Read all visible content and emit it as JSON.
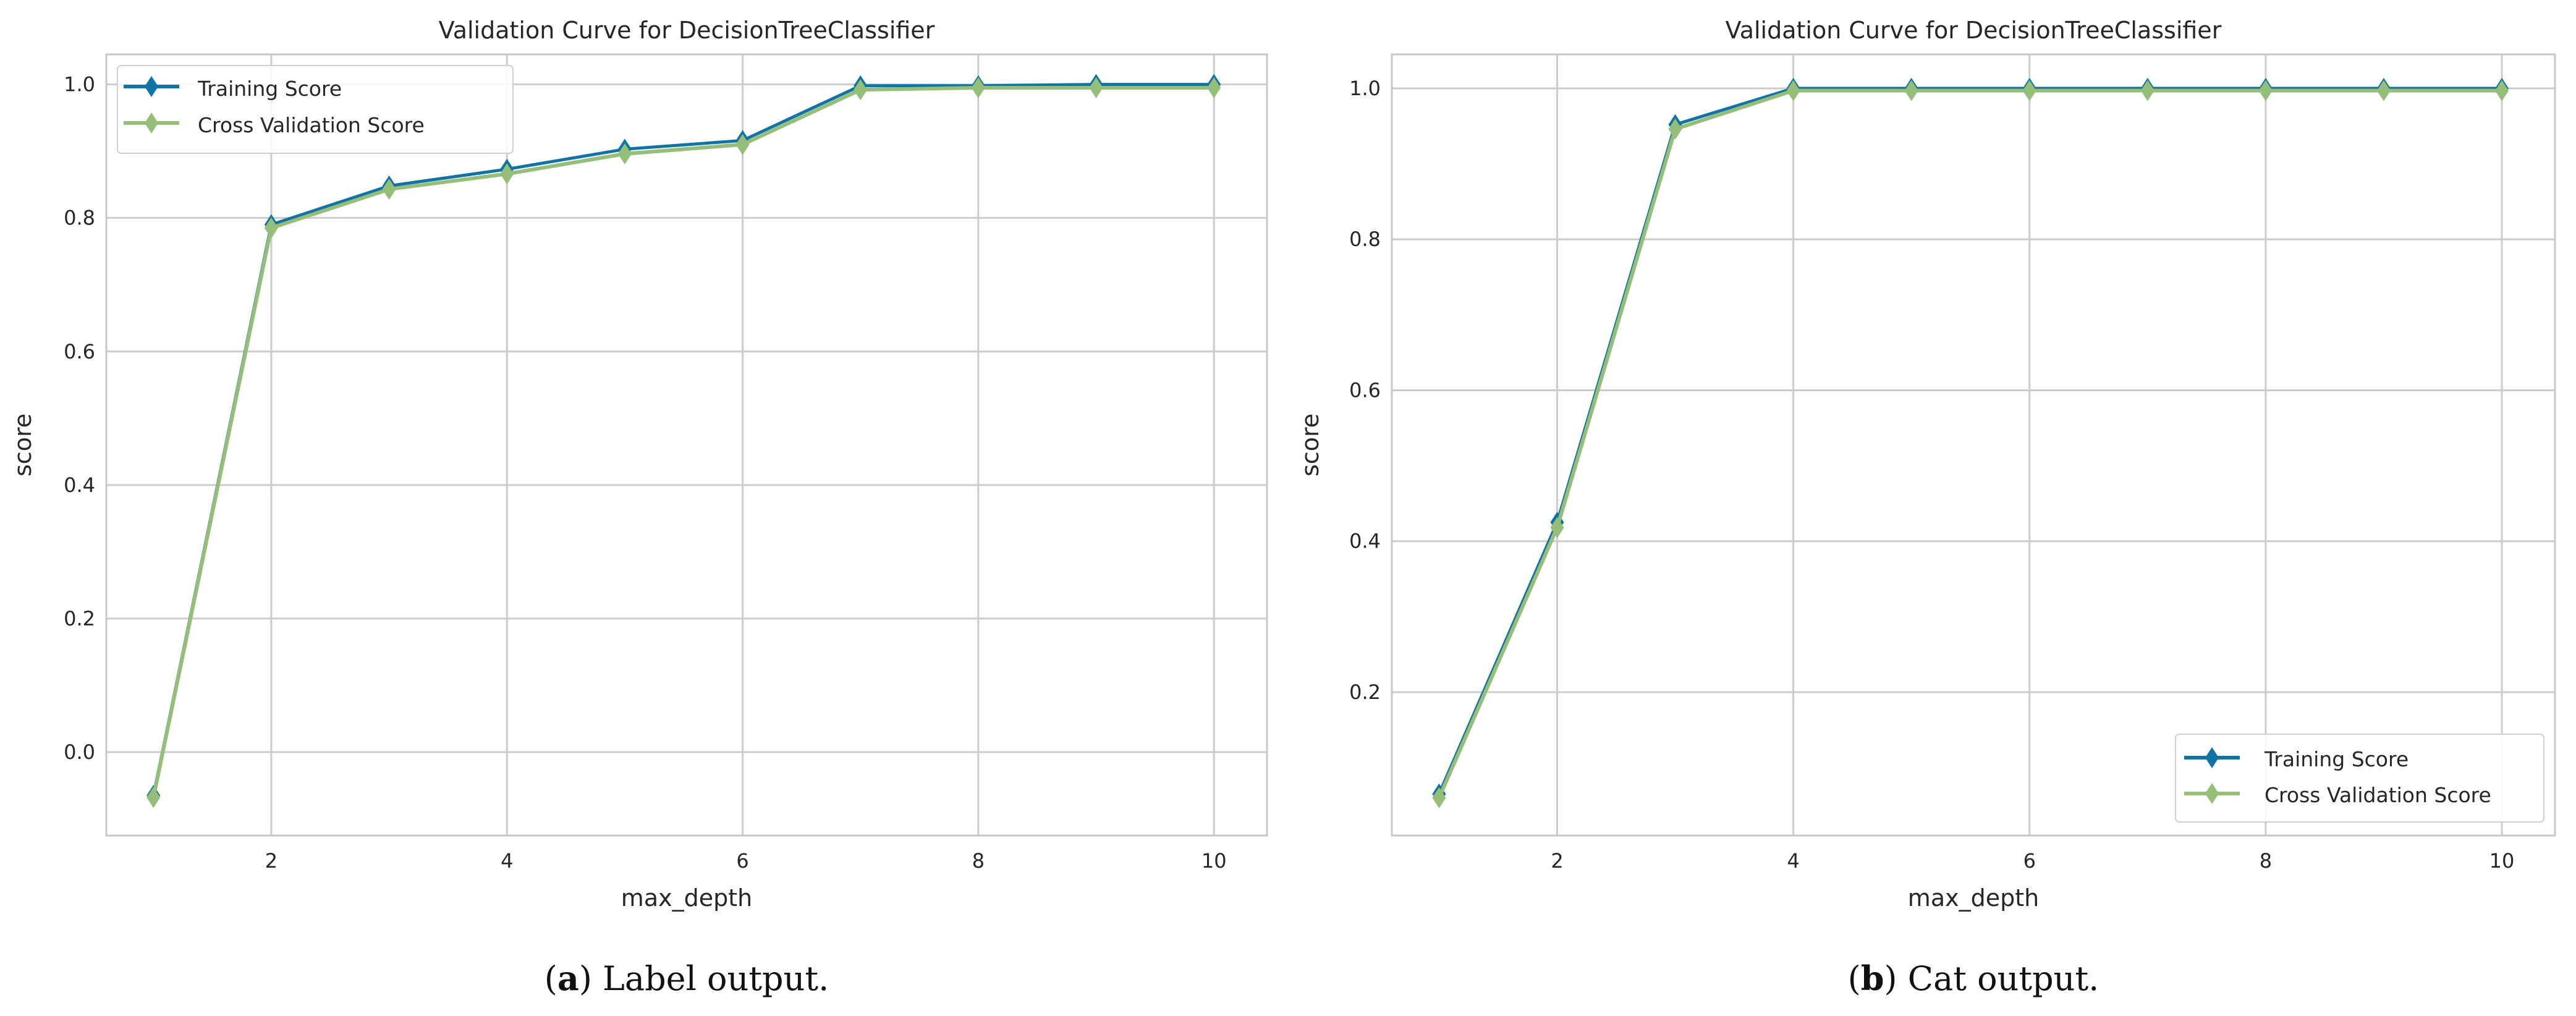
{
  "colors": {
    "training": "#0f73a6",
    "cross_validation": "#95be78",
    "grid": "#cccccc",
    "frame": "#c8c8c8"
  },
  "chart_data": [
    {
      "type": "line",
      "title": "Validation Curve for DecisionTreeClassifier",
      "xlabel": "max_depth",
      "ylabel": "score",
      "xlim": [
        0.6,
        10.45
      ],
      "ylim": [
        -0.125,
        1.045
      ],
      "xticks": [
        2,
        4,
        6,
        8,
        10
      ],
      "xtick_labels": [
        "2",
        "4",
        "6",
        "8",
        "10"
      ],
      "yticks": [
        0.0,
        0.2,
        0.4,
        0.6,
        0.8,
        1.0
      ],
      "ytick_labels": [
        "0.0",
        "0.2",
        "0.4",
        "0.6",
        "0.8",
        "1.0"
      ],
      "grid": true,
      "legend_position": "top-left",
      "x": [
        1,
        2,
        3,
        4,
        5,
        6,
        7,
        8,
        9,
        10
      ],
      "series": [
        {
          "name": "Training Score",
          "color_key": "training",
          "values": [
            -0.065,
            0.79,
            0.848,
            0.873,
            0.903,
            0.916,
            0.998,
            0.998,
            1.0,
            1.0
          ]
        },
        {
          "name": "Cross Validation Score",
          "color_key": "cross_validation",
          "values": [
            -0.068,
            0.785,
            0.843,
            0.866,
            0.896,
            0.91,
            0.992,
            0.995,
            0.995,
            0.995
          ]
        }
      ],
      "caption": {
        "letter": "a",
        "text": "Label output."
      }
    },
    {
      "type": "line",
      "title": "Validation Curve for DecisionTreeClassifier",
      "xlabel": "max_depth",
      "ylabel": "score",
      "xlim": [
        0.6,
        10.45
      ],
      "ylim": [
        0.01,
        1.045
      ],
      "xticks": [
        2,
        4,
        6,
        8,
        10
      ],
      "xtick_labels": [
        "2",
        "4",
        "6",
        "8",
        "10"
      ],
      "yticks": [
        0.2,
        0.4,
        0.6,
        0.8,
        1.0
      ],
      "ytick_labels": [
        "0.2",
        "0.4",
        "0.6",
        "0.8",
        "1.0"
      ],
      "grid": true,
      "legend_position": "bottom-right",
      "x": [
        1,
        2,
        3,
        4,
        5,
        6,
        7,
        8,
        9,
        10
      ],
      "series": [
        {
          "name": "Training Score",
          "color_key": "training",
          "values": [
            0.065,
            0.425,
            0.952,
            1.0,
            1.0,
            1.0,
            1.0,
            1.0,
            1.0,
            1.0
          ]
        },
        {
          "name": "Cross Validation Score",
          "color_key": "cross_validation",
          "values": [
            0.06,
            0.418,
            0.946,
            0.997,
            0.997,
            0.997,
            0.997,
            0.997,
            0.997,
            0.997
          ]
        }
      ],
      "caption": {
        "letter": "b",
        "text": "Cat output."
      }
    }
  ]
}
